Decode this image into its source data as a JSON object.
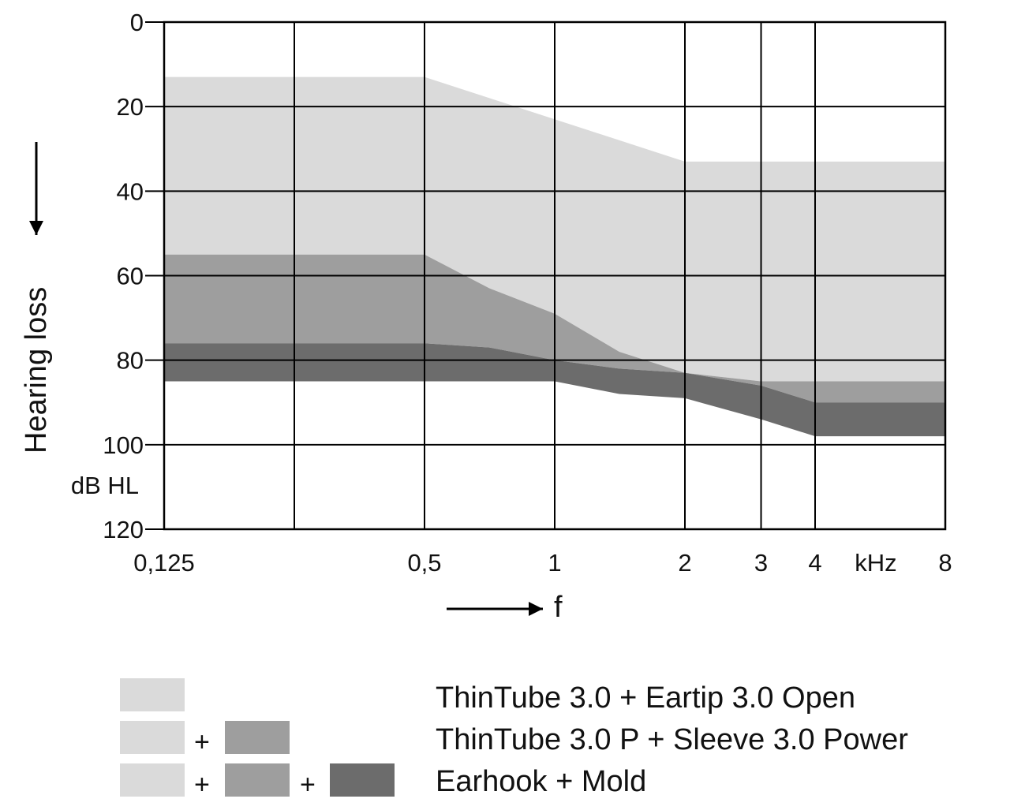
{
  "chart_data": {
    "type": "area",
    "title": "",
    "xlabel": "f",
    "x_unit": "kHz",
    "ylabel": "Hearing loss",
    "y_unit": "dB HL",
    "ylim": [
      0,
      120
    ],
    "y_ticks": [
      "0",
      "20",
      "40",
      "60",
      "80",
      "100",
      "120"
    ],
    "x_ticks": [
      "0,125",
      "0,5",
      "1",
      "2",
      "3",
      "4",
      "8"
    ],
    "grid": true,
    "series": [
      {
        "name": "ThinTube 3.0 + Eartip 3.0 Open",
        "color": "#dadada",
        "upper": [
          [
            0.125,
            13
          ],
          [
            0.5,
            13
          ],
          [
            1,
            23
          ],
          [
            2,
            33
          ],
          [
            3,
            33
          ],
          [
            4,
            33
          ],
          [
            8,
            33
          ]
        ],
        "lower": [
          [
            0.125,
            55
          ],
          [
            0.5,
            55
          ],
          [
            0.707,
            63
          ],
          [
            1,
            69
          ],
          [
            1.41,
            78
          ],
          [
            2,
            83
          ],
          [
            3,
            85
          ],
          [
            4,
            85
          ],
          [
            8,
            85
          ]
        ]
      },
      {
        "name": "ThinTube 3.0 P + Sleeve 3.0 Power",
        "color": "#9e9e9e",
        "upper": [
          [
            0.125,
            55
          ],
          [
            0.5,
            55
          ],
          [
            0.707,
            63
          ],
          [
            1,
            69
          ],
          [
            1.41,
            78
          ],
          [
            2,
            83
          ],
          [
            3,
            85
          ],
          [
            4,
            85
          ],
          [
            8,
            85
          ]
        ],
        "lower": [
          [
            0.125,
            76
          ],
          [
            0.5,
            76
          ],
          [
            0.707,
            77
          ],
          [
            1,
            80
          ],
          [
            1.41,
            82
          ],
          [
            2,
            83
          ],
          [
            3,
            86
          ],
          [
            4,
            90
          ],
          [
            8,
            90
          ]
        ]
      },
      {
        "name": "Earhook + Mold",
        "color": "#6c6c6c",
        "upper": [
          [
            0.125,
            76
          ],
          [
            0.5,
            76
          ],
          [
            0.707,
            77
          ],
          [
            1,
            80
          ],
          [
            1.41,
            82
          ],
          [
            2,
            83
          ],
          [
            3,
            86
          ],
          [
            4,
            90
          ],
          [
            8,
            90
          ]
        ],
        "lower": [
          [
            0.125,
            85
          ],
          [
            0.5,
            85
          ],
          [
            1,
            85
          ],
          [
            1.41,
            88
          ],
          [
            2,
            89
          ],
          [
            3,
            94
          ],
          [
            4,
            98
          ],
          [
            8,
            98
          ]
        ]
      }
    ]
  },
  "legend": {
    "items": [
      {
        "label": "ThinTube 3.0 + Eartip 3.0 Open"
      },
      {
        "label": "ThinTube 3.0 P + Sleeve 3.0 Power"
      },
      {
        "label": "Earhook + Mold"
      }
    ],
    "plus": "+"
  }
}
